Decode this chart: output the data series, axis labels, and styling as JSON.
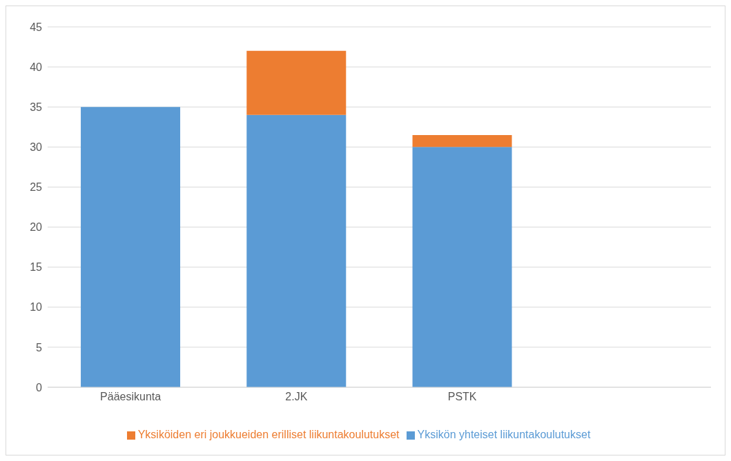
{
  "chart_data": {
    "type": "bar",
    "stacked": true,
    "categories": [
      "Pääesikunta",
      "2.JK",
      "PSTK",
      null
    ],
    "series": [
      {
        "name": "Yksikön yhteiset liikuntakoulutukset",
        "color": "#5b9bd5",
        "values": [
          35,
          34,
          30,
          null
        ]
      },
      {
        "name": "Yksiköiden eri joukkueiden erilliset liikuntakoulutukset",
        "color": "#ed7d31",
        "values": [
          null,
          8,
          1.5,
          null
        ]
      }
    ],
    "ylim": [
      0,
      45
    ],
    "yticks": [
      0,
      5,
      10,
      15,
      20,
      25,
      30,
      35,
      40,
      45
    ],
    "grid": "y",
    "legend": "bottom"
  }
}
